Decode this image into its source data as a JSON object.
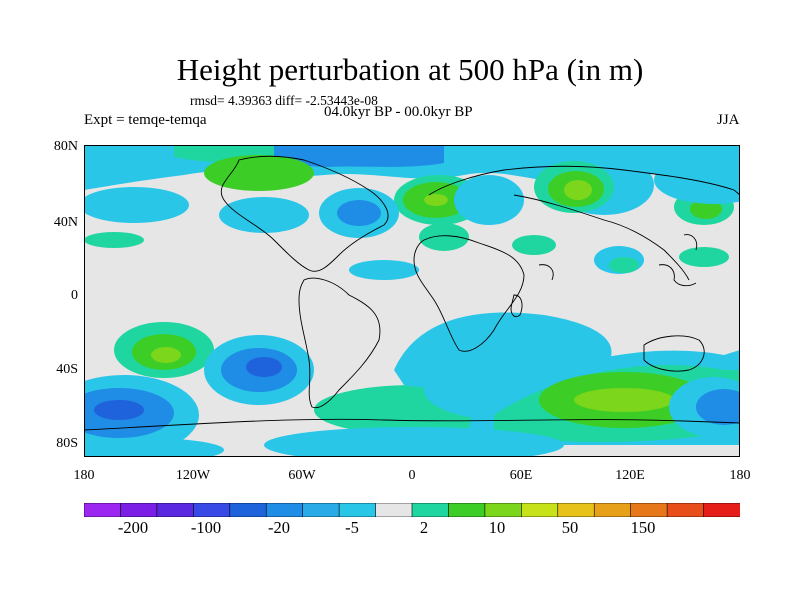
{
  "title": "Height perturbation at 500 hPa (in m)",
  "stats_text": "rmsd= 4.39363 diff= -2.53443e-08",
  "expt_text": "Expt = temqe-temqa",
  "period_text": "04.0kyr BP - 00.0kyr BP",
  "season_text": "JJA",
  "lat_labels": [
    "80N",
    "40N",
    "0",
    "40S",
    "80S"
  ],
  "lon_labels": [
    "180",
    "120W",
    "60W",
    "0",
    "60E",
    "120E",
    "180"
  ],
  "colorbar": {
    "colors": [
      "#9c27f0",
      "#7b1fe6",
      "#5a28e0",
      "#3949e6",
      "#1e63dc",
      "#1f8ce6",
      "#2aaae6",
      "#29c6e8",
      "#e6e6e6",
      "#1fd6a0",
      "#3ccd27",
      "#7bd61c",
      "#c8e21a",
      "#e6c21a",
      "#e6a01a",
      "#e6781a",
      "#e84e1a",
      "#e61e1a"
    ],
    "labels": [
      "-200",
      "-100",
      "-20",
      "-5",
      "2",
      "10",
      "50",
      "150"
    ]
  },
  "map_colors": {
    "background": "#e6e6e6",
    "weak_negative": "#29c6e8",
    "moderate_negative": "#2aaae6",
    "negative": "#1f8ce6",
    "strong_negative": "#1e63dc",
    "weak_positive": "#1fd6a0",
    "positive": "#3ccd27",
    "moderate_positive": "#7bd61c",
    "strong_positive": "#c8e21a",
    "coast": "#000000"
  }
}
